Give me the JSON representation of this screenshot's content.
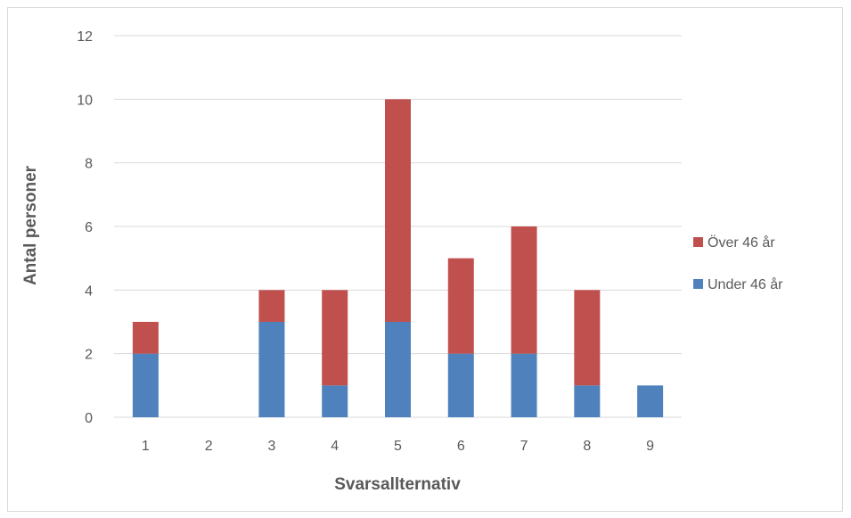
{
  "chart_data": {
    "type": "bar",
    "stacked": true,
    "categories": [
      "1",
      "2",
      "3",
      "4",
      "5",
      "6",
      "7",
      "8",
      "9"
    ],
    "series": [
      {
        "name": "Under 46 år",
        "color": "#4f81bd",
        "values": [
          2,
          0,
          3,
          1,
          3,
          2,
          2,
          1,
          1
        ]
      },
      {
        "name": "Över 46 år",
        "color": "#c0504d",
        "values": [
          1,
          0,
          1,
          3,
          7,
          3,
          4,
          3,
          0
        ]
      }
    ],
    "legend_order": [
      "Över 46 år",
      "Under 46 år"
    ],
    "legend_position": "right",
    "title": "",
    "xlabel": "Svarsallternativ",
    "ylabel": "Antal personer",
    "ylim": [
      0,
      12
    ],
    "yticks": [
      0,
      2,
      4,
      6,
      8,
      10,
      12
    ],
    "grid": true,
    "gridline_color": "#d9d9d9"
  }
}
